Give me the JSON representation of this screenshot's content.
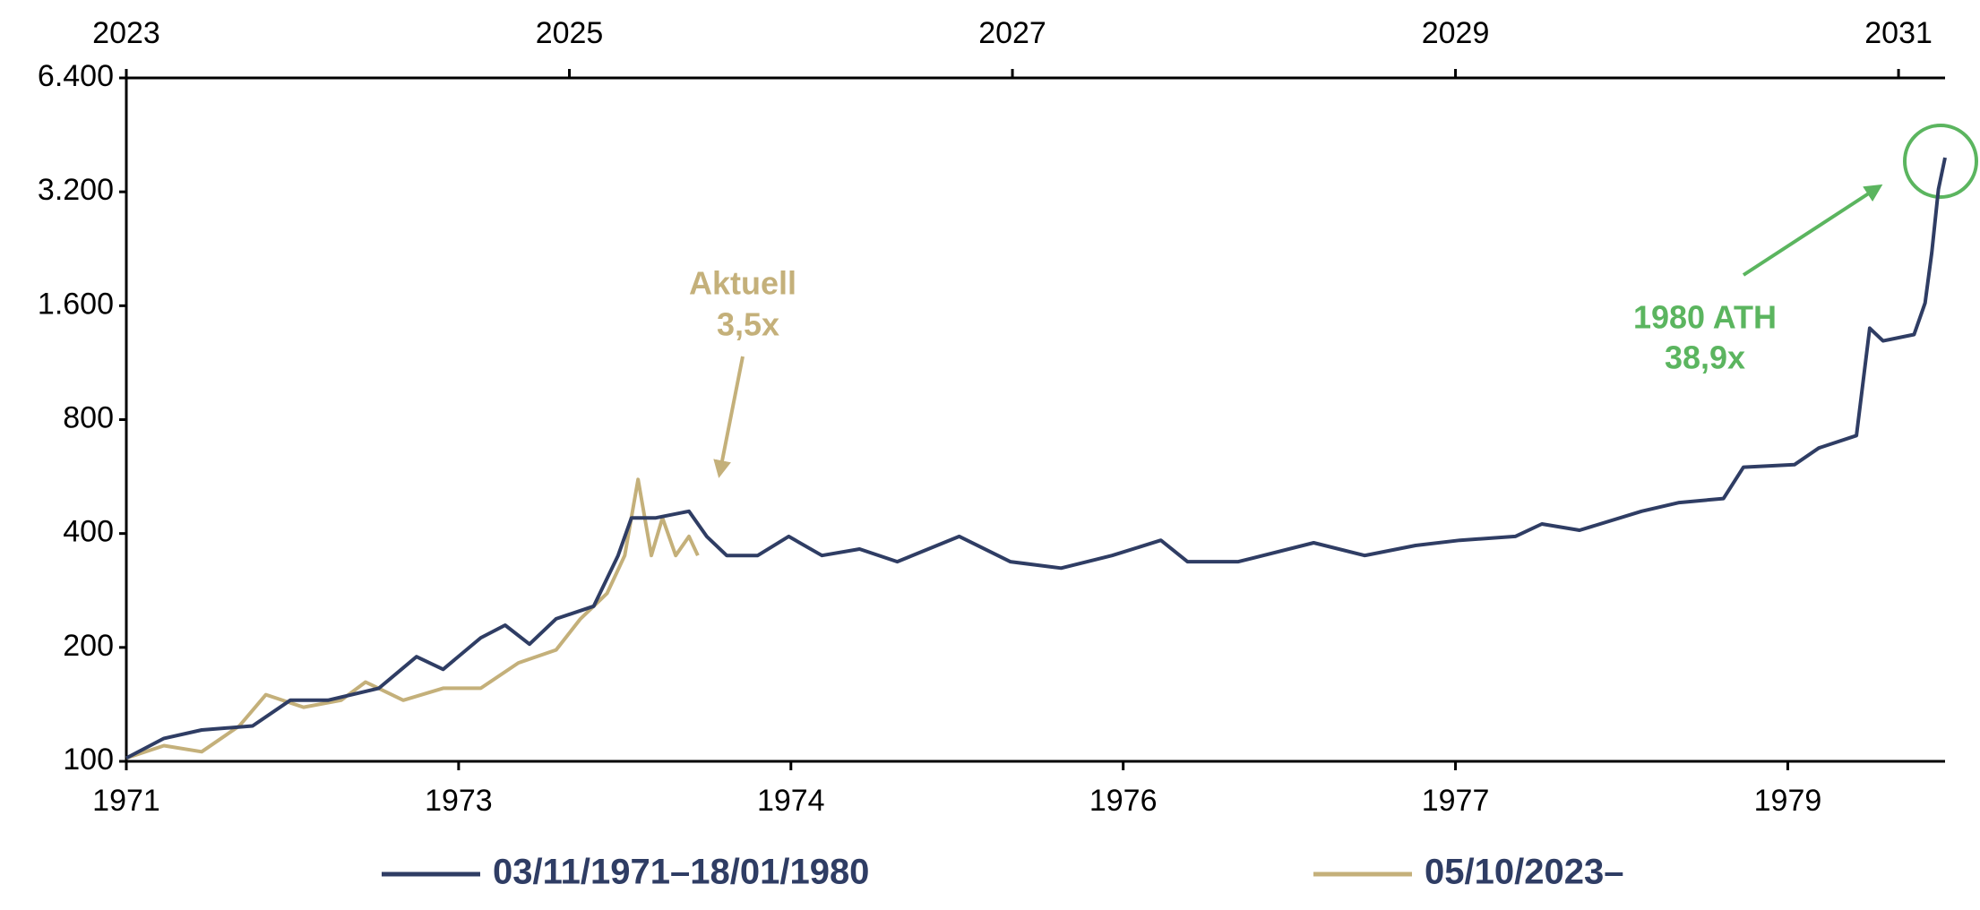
{
  "chart_data": {
    "type": "line",
    "log_scale": true,
    "grid": false,
    "legend": "bottom",
    "ylim": [
      100,
      6400
    ],
    "yticks": [
      100,
      200,
      400,
      800,
      {
        "value": 1600,
        "label": "1.600"
      },
      {
        "value": 3200,
        "label": "3.200"
      },
      {
        "value": 6400,
        "label": "6.400"
      }
    ],
    "xlim": [
      1971.84,
      1980.05
    ],
    "xticks": [
      {
        "value": 1971.84,
        "label": "1971"
      },
      {
        "value": 1973.34,
        "label": "1973"
      },
      {
        "value": 1974.84,
        "label": "1974"
      },
      {
        "value": 1976.34,
        "label": "1976"
      },
      {
        "value": 1977.84,
        "label": "1977"
      },
      {
        "value": 1979.34,
        "label": "1979"
      }
    ],
    "x2lim": [
      2023.76,
      2031.97
    ],
    "x2ticks": [
      {
        "value": 2023.76,
        "label": "2023"
      },
      {
        "value": 2025.76,
        "label": "2025"
      },
      {
        "value": 2027.76,
        "label": "2027"
      },
      {
        "value": 2029.76,
        "label": "2029"
      },
      {
        "value": 2031.76,
        "label": "2031"
      }
    ],
    "series": [
      {
        "name": "03/11/1971–18/01/1980",
        "color": "#2f3d64",
        "xaxis": "x",
        "x": [
          1971.84,
          1972.01,
          1972.18,
          1972.41,
          1972.58,
          1972.75,
          1972.98,
          1973.15,
          1973.27,
          1973.44,
          1973.55,
          1973.66,
          1973.78,
          1973.95,
          1974.06,
          1974.12,
          1974.23,
          1974.38,
          1974.46,
          1974.55,
          1974.69,
          1974.83,
          1974.98,
          1975.15,
          1975.32,
          1975.6,
          1975.83,
          1976.06,
          1976.29,
          1976.51,
          1976.63,
          1976.86,
          1977.2,
          1977.43,
          1977.66,
          1977.86,
          1978.11,
          1978.23,
          1978.4,
          1978.68,
          1978.85,
          1979.05,
          1979.14,
          1979.37,
          1979.48,
          1979.65,
          1979.71,
          1979.77,
          1979.91,
          1979.96,
          1979.99,
          1980.02,
          1980.05
        ],
        "values": [
          102,
          115,
          121,
          124,
          145,
          145,
          156,
          189,
          175,
          212,
          229,
          204,
          238,
          257,
          350,
          440,
          440,
          458,
          393,
          350,
          350,
          393,
          350,
          364,
          337,
          393,
          337,
          324,
          350,
          384,
          337,
          337,
          378,
          350,
          372,
          384,
          393,
          424,
          408,
          458,
          483,
          495,
          599,
          608,
          673,
          726,
          1396,
          1292,
          1343,
          1627,
          2213,
          3249,
          3940
        ]
      },
      {
        "name": "05/10/2023–",
        "color": "#c4b07a",
        "xaxis": "x2",
        "x": [
          2023.76,
          2023.93,
          2024.1,
          2024.27,
          2024.39,
          2024.56,
          2024.73,
          2024.84,
          2025.01,
          2025.19,
          2025.36,
          2025.53,
          2025.7,
          2025.81,
          2025.93,
          2026.01,
          2026.07,
          2026.13,
          2026.18,
          2026.24,
          2026.3,
          2026.34
        ],
        "values": [
          102,
          110,
          106,
          124,
          150,
          139,
          145,
          162,
          145,
          156,
          156,
          182,
          197,
          238,
          278,
          350,
          556,
          350,
          440,
          350,
          393,
          350
        ]
      }
    ],
    "annotations": [
      {
        "text": "Aktuell",
        "color": "#c4b07a"
      },
      {
        "text": "3,5x",
        "color": "#c4b07a"
      },
      {
        "text": "1980 ATH",
        "color": "#5bb55f"
      },
      {
        "text": "38,9x",
        "color": "#5bb55f"
      }
    ]
  }
}
